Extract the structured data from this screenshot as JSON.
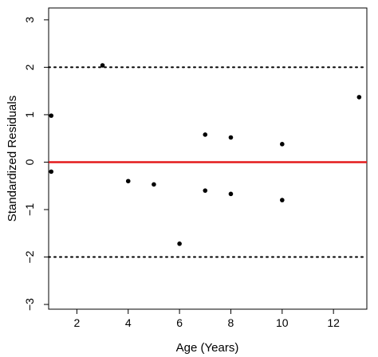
{
  "chart_data": {
    "type": "scatter",
    "title": "",
    "xlabel": "Age (Years)",
    "ylabel": "Standardized Residuals",
    "xlim": [
      0.9,
      13.3
    ],
    "ylim": [
      -3.1,
      3.25
    ],
    "xticks": [
      2,
      4,
      6,
      8,
      10,
      12
    ],
    "yticks": [
      -3,
      -2,
      -1,
      0,
      1,
      2,
      3
    ],
    "x": [
      1,
      1,
      3,
      4,
      5,
      6,
      7,
      7,
      8,
      8,
      10,
      10,
      13
    ],
    "y": [
      0.98,
      -0.2,
      2.04,
      -0.4,
      -0.47,
      -1.72,
      0.58,
      -0.6,
      0.52,
      -0.67,
      0.38,
      -0.8,
      1.37
    ],
    "reference_lines": [
      {
        "y": 0,
        "style": "solid",
        "color": "#e41a1c"
      },
      {
        "y": 2,
        "style": "dotted",
        "color": "#000000"
      },
      {
        "y": -2,
        "style": "dotted",
        "color": "#000000"
      }
    ],
    "grid": false,
    "legend": "none"
  }
}
